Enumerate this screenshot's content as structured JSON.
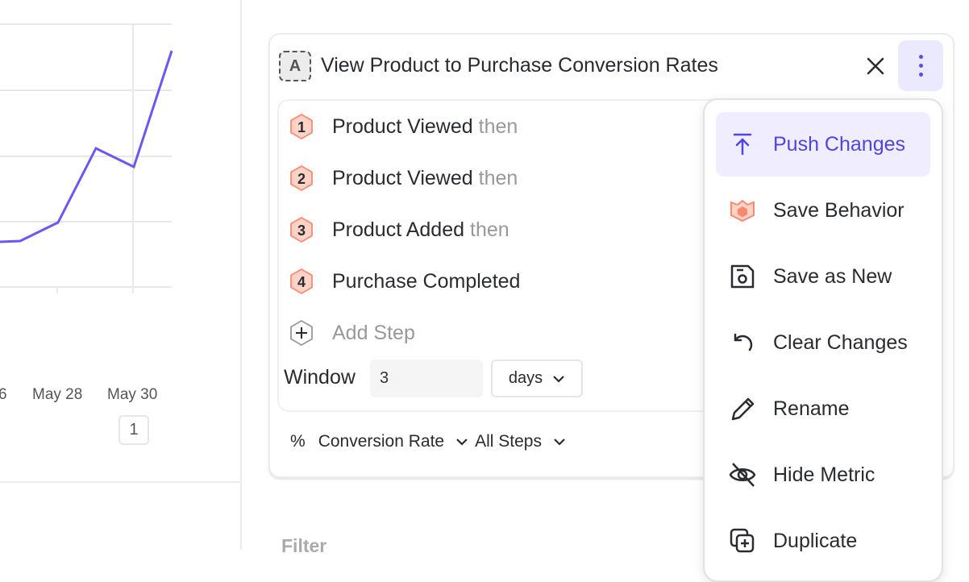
{
  "chart": {
    "x_ticks": [
      "6",
      "May 28",
      "May 30"
    ],
    "annotation_badge": "1",
    "line_color": "#6e56f5"
  },
  "metric": {
    "badge": "A",
    "title": "View Product to Purchase Conversion Rates",
    "steps": [
      {
        "number": "1",
        "label": "Product Viewed",
        "suffix": "then"
      },
      {
        "number": "2",
        "label": "Product Viewed",
        "suffix": "then"
      },
      {
        "number": "3",
        "label": "Product Added",
        "suffix": "then"
      },
      {
        "number": "4",
        "label": "Purchase Completed",
        "suffix": ""
      }
    ],
    "add_step": "Add Step",
    "window_label": "Window",
    "window_value": "3",
    "window_unit": "days",
    "measure_symbol": "%",
    "measure": "Conversion Rate",
    "steps_scope": "All Steps"
  },
  "filter_label": "Filter",
  "menu": {
    "items": [
      {
        "label": "Push Changes",
        "icon": "push-icon",
        "active": true
      },
      {
        "label": "Save Behavior",
        "icon": "behavior-icon"
      },
      {
        "label": "Save as New",
        "icon": "save-icon"
      },
      {
        "label": "Clear Changes",
        "icon": "undo-icon"
      },
      {
        "label": "Rename",
        "icon": "pencil-icon"
      },
      {
        "label": "Hide Metric",
        "icon": "eye-off-icon"
      },
      {
        "label": "Duplicate",
        "icon": "duplicate-icon"
      }
    ]
  },
  "colors": {
    "accent": "#5a4ee6",
    "step_hex": "#f98a6f",
    "step_hex_fill": "#fdd3c8"
  }
}
